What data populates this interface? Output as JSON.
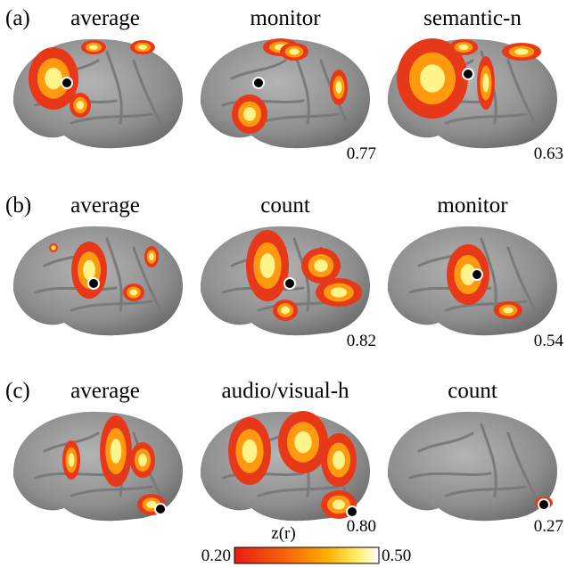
{
  "rows": [
    {
      "label": "(a)",
      "panels": [
        {
          "title": "average"
        },
        {
          "title": "monitor",
          "value": "0.77"
        },
        {
          "title": "semantic-n",
          "value": "0.63"
        }
      ]
    },
    {
      "label": "(b)",
      "panels": [
        {
          "title": "average"
        },
        {
          "title": "count",
          "value": "0.82"
        },
        {
          "title": "monitor",
          "value": "0.54"
        }
      ]
    },
    {
      "label": "(c)",
      "panels": [
        {
          "title": "average"
        },
        {
          "title": "audio/visual-h",
          "value": "0.80"
        },
        {
          "title": "count",
          "value": "0.27"
        }
      ]
    }
  ],
  "colorbar": {
    "title": "z(r)",
    "min_label": "0.20",
    "max_label": "0.50"
  }
}
